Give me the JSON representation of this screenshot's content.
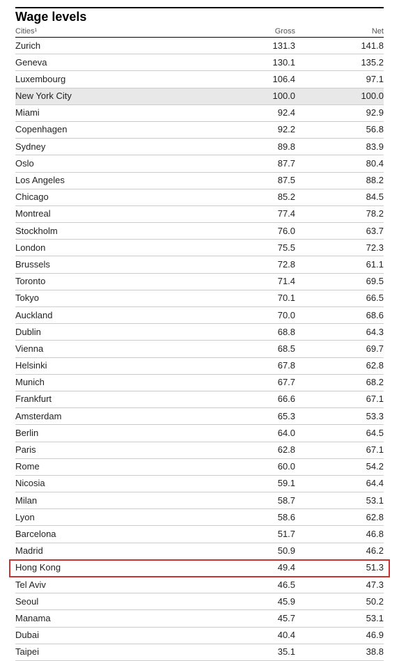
{
  "title": "Wage levels",
  "columns": {
    "city": "Cities¹",
    "gross": "Gross",
    "net": "Net"
  },
  "styles": {
    "background_color": "#ffffff",
    "text_color": "#222222",
    "rule_color": "#000000",
    "row_border_color": "#cccccc",
    "highlight_grey": "#e8e8e8",
    "highlight_red_border": "#cc3333",
    "title_fontsize": 18,
    "header_fontsize": 11,
    "body_fontsize": 13
  },
  "highlight_grey_row": "New York City",
  "highlight_red_row": "Hong Kong",
  "rows": [
    {
      "city": "Zurich",
      "gross": "131.3",
      "net": "141.8"
    },
    {
      "city": "Geneva",
      "gross": "130.1",
      "net": "135.2"
    },
    {
      "city": "Luxembourg",
      "gross": "106.4",
      "net": "97.1"
    },
    {
      "city": "New York City",
      "gross": "100.0",
      "net": "100.0"
    },
    {
      "city": "Miami",
      "gross": "92.4",
      "net": "92.9"
    },
    {
      "city": "Copenhagen",
      "gross": "92.2",
      "net": "56.8"
    },
    {
      "city": "Sydney",
      "gross": "89.8",
      "net": "83.9"
    },
    {
      "city": "Oslo",
      "gross": "87.7",
      "net": "80.4"
    },
    {
      "city": "Los Angeles",
      "gross": "87.5",
      "net": "88.2"
    },
    {
      "city": "Chicago",
      "gross": "85.2",
      "net": "84.5"
    },
    {
      "city": "Montreal",
      "gross": "77.4",
      "net": "78.2"
    },
    {
      "city": "Stockholm",
      "gross": "76.0",
      "net": "63.7"
    },
    {
      "city": "London",
      "gross": "75.5",
      "net": "72.3"
    },
    {
      "city": "Brussels",
      "gross": "72.8",
      "net": "61.1"
    },
    {
      "city": "Toronto",
      "gross": "71.4",
      "net": "69.5"
    },
    {
      "city": "Tokyo",
      "gross": "70.1",
      "net": "66.5"
    },
    {
      "city": "Auckland",
      "gross": "70.0",
      "net": "68.6"
    },
    {
      "city": "Dublin",
      "gross": "68.8",
      "net": "64.3"
    },
    {
      "city": "Vienna",
      "gross": "68.5",
      "net": "69.7"
    },
    {
      "city": "Helsinki",
      "gross": "67.8",
      "net": "62.8"
    },
    {
      "city": "Munich",
      "gross": "67.7",
      "net": "68.2"
    },
    {
      "city": "Frankfurt",
      "gross": "66.6",
      "net": "67.1"
    },
    {
      "city": "Amsterdam",
      "gross": "65.3",
      "net": "53.3"
    },
    {
      "city": "Berlin",
      "gross": "64.0",
      "net": "64.5"
    },
    {
      "city": "Paris",
      "gross": "62.8",
      "net": "67.1"
    },
    {
      "city": "Rome",
      "gross": "60.0",
      "net": "54.2"
    },
    {
      "city": "Nicosia",
      "gross": "59.1",
      "net": "64.4"
    },
    {
      "city": "Milan",
      "gross": "58.7",
      "net": "53.1"
    },
    {
      "city": "Lyon",
      "gross": "58.6",
      "net": "62.8"
    },
    {
      "city": "Barcelona",
      "gross": "51.7",
      "net": "46.8"
    },
    {
      "city": "Madrid",
      "gross": "50.9",
      "net": "46.2"
    },
    {
      "city": "Hong Kong",
      "gross": "49.4",
      "net": "51.3"
    },
    {
      "city": "Tel Aviv",
      "gross": "46.5",
      "net": "47.3"
    },
    {
      "city": "Seoul",
      "gross": "45.9",
      "net": "50.2"
    },
    {
      "city": "Manama",
      "gross": "45.7",
      "net": "53.1"
    },
    {
      "city": "Dubai",
      "gross": "40.4",
      "net": "46.9"
    },
    {
      "city": "Taipei",
      "gross": "35.1",
      "net": "38.8"
    }
  ]
}
